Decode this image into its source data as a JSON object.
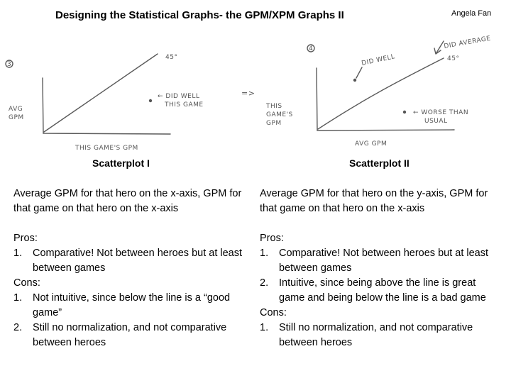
{
  "header": {
    "title": "Designing the Statistical Graphs- the GPM/XPM Graphs II",
    "author": "Angela Fan"
  },
  "sketch1": {
    "number": "3",
    "y_label": [
      "AVG",
      "GPM"
    ],
    "x_label": "THIS GAME'S GPM",
    "line_label": "45°",
    "point_note": [
      "← DID WELL",
      "THIS GAME"
    ]
  },
  "arrow_symbol": "=>",
  "sketch2": {
    "number": "4",
    "y_label": [
      "THIS",
      "GAME'S",
      "GPM"
    ],
    "x_label": "AVG GPM",
    "line_label": "45°",
    "note_above": "DID WELL",
    "note_line": "DID AVERAGE",
    "note_below": [
      "← WORSE THAN",
      "USUAL"
    ]
  },
  "left": {
    "caption": "Scatterplot I",
    "description": "Average GPM for that hero on the x-axis, GPM for that game on that hero on the x-axis",
    "pros_label": "Pros:",
    "pros": [
      {
        "num": "1.",
        "text": "Comparative! Not between heroes but at least between games"
      }
    ],
    "cons_label": "Cons:",
    "cons": [
      {
        "num": "1.",
        "text": "Not intuitive, since below the line is a “good game”"
      },
      {
        "num": "2.",
        "text": "Still no normalization, and not comparative between heroes"
      }
    ]
  },
  "right": {
    "caption": "Scatterplot II",
    "description": "Average GPM for that hero on the y-axis, GPM for that game on that hero on the x-axis",
    "pros_label": "Pros:",
    "pros": [
      {
        "num": "1.",
        "text": "Comparative! Not between heroes but at least between games"
      },
      {
        "num": "2.",
        "text": "Intuitive, since being above the line is great game and being below the line is a bad game"
      }
    ],
    "cons_label": "Cons:",
    "cons": [
      {
        "num": "1.",
        "text": "Still no normalization, and not comparative between heroes"
      }
    ]
  }
}
